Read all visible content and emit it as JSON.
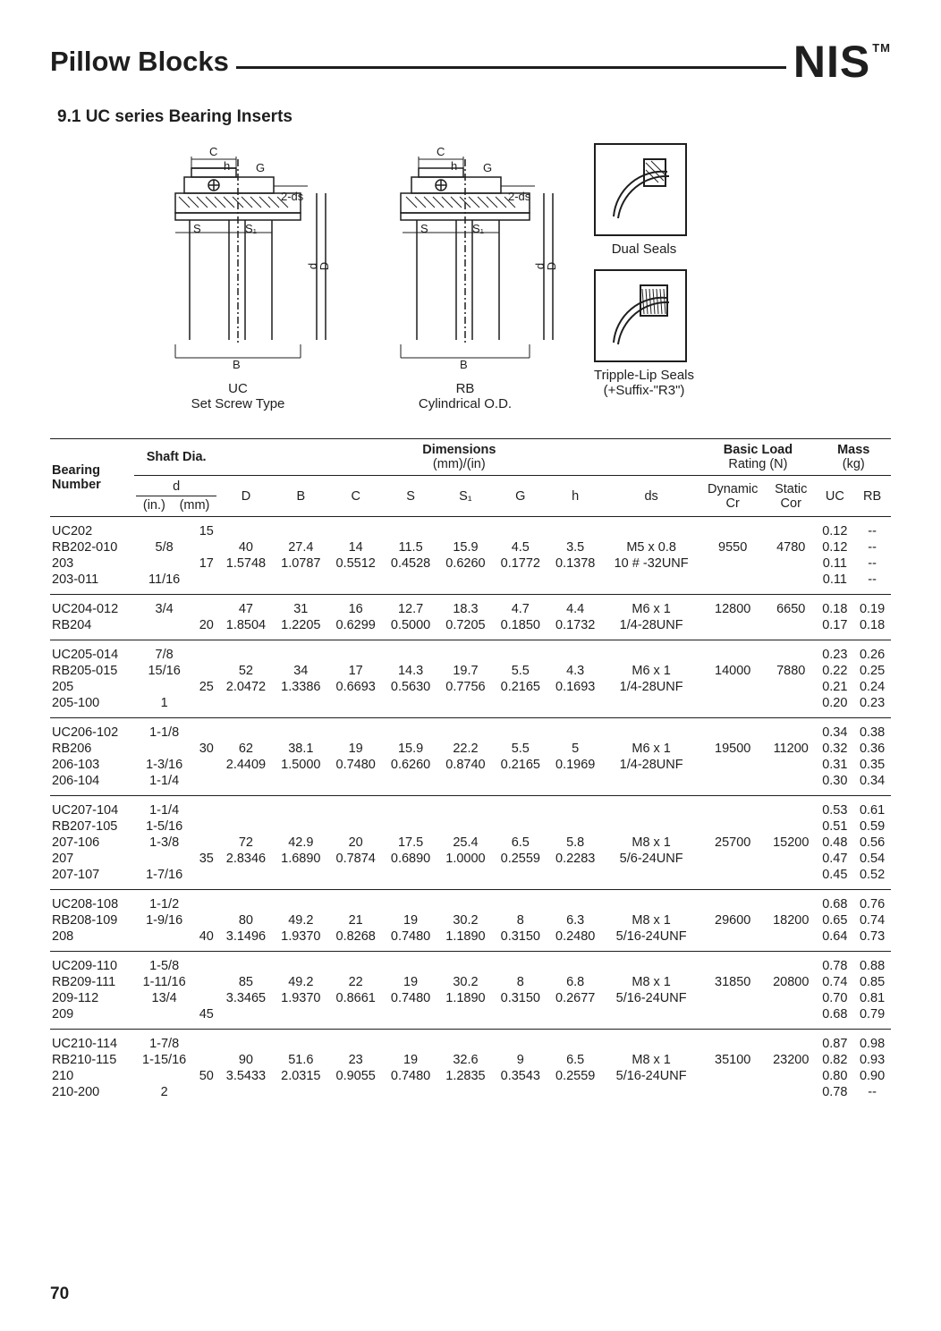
{
  "header": {
    "title": "Pillow Blocks",
    "brand": "NIS",
    "tm": "TM"
  },
  "subtitle": "9.1  UC series Bearing Inserts",
  "diagram_labels": {
    "letters": [
      "C",
      "h",
      "G",
      "2-ds",
      "S",
      "S₁",
      "d",
      "D",
      "B"
    ],
    "uc_type": "UC",
    "uc_sub": "Set Screw Type",
    "rb_type": "RB",
    "rb_sub": "Cylindrical O.D.",
    "dual": "Dual Seals",
    "triple1": "Tripple-Lip Seals",
    "triple2": "(+Suffix-\"R3\")"
  },
  "col_headers": {
    "bearing": "Bearing Number",
    "shaft": "Shaft Dia.",
    "dims": "Dimensions",
    "dims_unit": "(mm)/(in)",
    "load": "Basic Load",
    "load_unit": "Rating (N)",
    "mass": "Mass",
    "mass_unit": "(kg)",
    "d": "d",
    "d_in": "(in.)",
    "d_mm": "(mm)",
    "D": "D",
    "B": "B",
    "C": "C",
    "S": "S",
    "S1": "S₁",
    "G": "G",
    "h": "h",
    "ds": "ds",
    "dyn": "Dynamic",
    "stat": "Static",
    "cr": "Cr",
    "cor": "Cor",
    "uc": "UC",
    "rb": "RB"
  },
  "groups": [
    {
      "bearings": [
        "UC202",
        "RB202-010",
        "203",
        "203-011"
      ],
      "d_in": [
        "",
        "5/8",
        "",
        "11/16"
      ],
      "d_mm": [
        "15",
        "",
        "17",
        ""
      ],
      "dim_mm": [
        "40",
        "27.4",
        "14",
        "11.5",
        "15.9",
        "4.5",
        "3.5"
      ],
      "dim_in": [
        "1.5748",
        "1.0787",
        "0.5512",
        "0.4528",
        "0.6260",
        "0.1772",
        "0.1378"
      ],
      "ds": [
        "M5 x 0.8",
        "10 # -32UNF"
      ],
      "cr": "9550",
      "cor": "4780",
      "mass_uc": [
        "0.12",
        "0.12",
        "0.11",
        "0.11"
      ],
      "mass_rb": [
        "--",
        "--",
        "--",
        "--"
      ]
    },
    {
      "bearings": [
        "UC204-012",
        "RB204"
      ],
      "d_in": [
        "3/4",
        ""
      ],
      "d_mm": [
        "",
        "20"
      ],
      "dim_mm": [
        "47",
        "31",
        "16",
        "12.7",
        "18.3",
        "4.7",
        "4.4"
      ],
      "dim_in": [
        "1.8504",
        "1.2205",
        "0.6299",
        "0.5000",
        "0.7205",
        "0.1850",
        "0.1732"
      ],
      "ds": [
        "M6 x 1",
        "1/4-28UNF"
      ],
      "cr": "12800",
      "cor": "6650",
      "mass_uc": [
        "0.18",
        "0.17"
      ],
      "mass_rb": [
        "0.19",
        "0.18"
      ]
    },
    {
      "bearings": [
        "UC205-014",
        "RB205-015",
        "205",
        "205-100"
      ],
      "d_in": [
        "7/8",
        "15/16",
        "",
        "1"
      ],
      "d_mm": [
        "",
        "",
        "25",
        ""
      ],
      "dim_mm": [
        "52",
        "34",
        "17",
        "14.3",
        "19.7",
        "5.5",
        "4.3"
      ],
      "dim_in": [
        "2.0472",
        "1.3386",
        "0.6693",
        "0.5630",
        "0.7756",
        "0.2165",
        "0.1693"
      ],
      "ds": [
        "M6 x 1",
        "1/4-28UNF"
      ],
      "cr": "14000",
      "cor": "7880",
      "mass_uc": [
        "0.23",
        "0.22",
        "0.21",
        "0.20"
      ],
      "mass_rb": [
        "0.26",
        "0.25",
        "0.24",
        "0.23"
      ]
    },
    {
      "bearings": [
        "UC206-102",
        "RB206",
        "206-103",
        "206-104"
      ],
      "d_in": [
        "1-1/8",
        "",
        "1-3/16",
        "1-1/4"
      ],
      "d_mm": [
        "",
        "30",
        "",
        ""
      ],
      "dim_mm": [
        "62",
        "38.1",
        "19",
        "15.9",
        "22.2",
        "5.5",
        "5"
      ],
      "dim_in": [
        "2.4409",
        "1.5000",
        "0.7480",
        "0.6260",
        "0.8740",
        "0.2165",
        "0.1969"
      ],
      "ds": [
        "M6 x 1",
        "1/4-28UNF"
      ],
      "cr": "19500",
      "cor": "11200",
      "mass_uc": [
        "0.34",
        "0.32",
        "0.31",
        "0.30"
      ],
      "mass_rb": [
        "0.38",
        "0.36",
        "0.35",
        "0.34"
      ]
    },
    {
      "bearings": [
        "UC207-104",
        "RB207-105",
        "207-106",
        "207",
        "207-107"
      ],
      "d_in": [
        "1-1/4",
        "1-5/16",
        "1-3/8",
        "",
        "1-7/16"
      ],
      "d_mm": [
        "",
        "",
        "",
        "35",
        ""
      ],
      "dim_mm": [
        "72",
        "42.9",
        "20",
        "17.5",
        "25.4",
        "6.5",
        "5.8"
      ],
      "dim_in": [
        "2.8346",
        "1.6890",
        "0.7874",
        "0.6890",
        "1.0000",
        "0.2559",
        "0.2283"
      ],
      "ds": [
        "M8 x 1",
        "5/6-24UNF"
      ],
      "cr": "25700",
      "cor": "15200",
      "mass_uc": [
        "0.53",
        "0.51",
        "0.48",
        "0.47",
        "0.45"
      ],
      "mass_rb": [
        "0.61",
        "0.59",
        "0.56",
        "0.54",
        "0.52"
      ]
    },
    {
      "bearings": [
        "UC208-108",
        "RB208-109",
        "208"
      ],
      "d_in": [
        "1-1/2",
        "1-9/16",
        ""
      ],
      "d_mm": [
        "",
        "",
        "40"
      ],
      "dim_mm": [
        "80",
        "49.2",
        "21",
        "19",
        "30.2",
        "8",
        "6.3"
      ],
      "dim_in": [
        "3.1496",
        "1.9370",
        "0.8268",
        "0.7480",
        "1.1890",
        "0.3150",
        "0.2480"
      ],
      "ds": [
        "M8 x 1",
        "5/16-24UNF"
      ],
      "cr": "29600",
      "cor": "18200",
      "mass_uc": [
        "0.68",
        "0.65",
        "0.64"
      ],
      "mass_rb": [
        "0.76",
        "0.74",
        "0.73"
      ]
    },
    {
      "bearings": [
        "UC209-110",
        "RB209-111",
        "209-112",
        "209"
      ],
      "d_in": [
        "1-5/8",
        "1-11/16",
        "13/4",
        ""
      ],
      "d_mm": [
        "",
        "",
        "",
        "45"
      ],
      "dim_mm": [
        "85",
        "49.2",
        "22",
        "19",
        "30.2",
        "8",
        "6.8"
      ],
      "dim_in": [
        "3.3465",
        "1.9370",
        "0.8661",
        "0.7480",
        "1.1890",
        "0.3150",
        "0.2677"
      ],
      "ds": [
        "M8  x 1",
        "5/16-24UNF"
      ],
      "cr": "31850",
      "cor": "20800",
      "mass_uc": [
        "0.78",
        "0.74",
        "0.70",
        "0.68"
      ],
      "mass_rb": [
        "0.88",
        "0.85",
        "0.81",
        "0.79"
      ]
    },
    {
      "bearings": [
        "UC210-114",
        "RB210-115",
        "210",
        "210-200"
      ],
      "d_in": [
        "1-7/8",
        "1-15/16",
        "",
        "2"
      ],
      "d_mm": [
        "",
        "",
        "50",
        ""
      ],
      "dim_mm": [
        "90",
        "51.6",
        "23",
        "19",
        "32.6",
        "9",
        "6.5"
      ],
      "dim_in": [
        "3.5433",
        "2.0315",
        "0.9055",
        "0.7480",
        "1.2835",
        "0.3543",
        "0.2559"
      ],
      "ds": [
        "M8 x 1",
        "5/16-24UNF"
      ],
      "cr": "35100",
      "cor": "23200",
      "mass_uc": [
        "0.87",
        "0.82",
        "0.80",
        "0.78"
      ],
      "mass_rb": [
        "0.98",
        "0.93",
        "0.90",
        "--"
      ]
    }
  ],
  "page_number": "70"
}
